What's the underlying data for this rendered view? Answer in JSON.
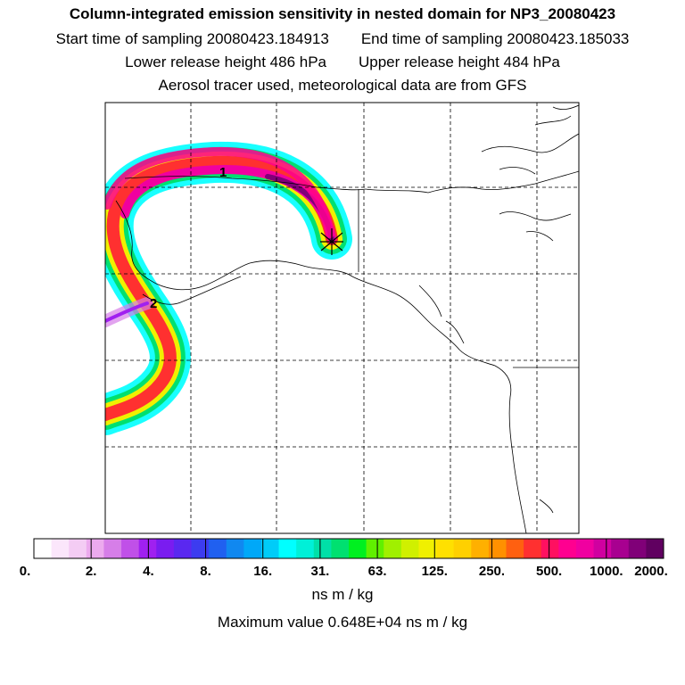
{
  "header": {
    "title": "Column-integrated emission sensitivity in nested domain for NP3_20080423",
    "start_label": "Start time of sampling 20080423.184913",
    "end_label": "End time of sampling 20080423.185033",
    "lower_label": "Lower release height  486 hPa",
    "upper_label": "Upper release height  484 hPa",
    "tracer_label": "Aerosol tracer used, meteorological data are from GFS"
  },
  "map": {
    "markers": [
      {
        "label": "1"
      },
      {
        "label": "2"
      }
    ],
    "release_symbol": "star-icon"
  },
  "colorbar": {
    "ticks": [
      "0.",
      "2.",
      "4.",
      "8.",
      "16.",
      "31.",
      "63.",
      "125.",
      "250.",
      "500.",
      "1000.",
      "2000."
    ],
    "colors": [
      "#ffffff",
      "#fbe6fb",
      "#f4ccf4",
      "#ecaaee",
      "#d67ee8",
      "#c050e8",
      "#a020f0",
      "#7a1cf0",
      "#5a28f0",
      "#3c3cf0",
      "#2060f0",
      "#1088f0",
      "#00a8f8",
      "#00ccf8",
      "#00ffff",
      "#00f0d8",
      "#00e0a8",
      "#00e070",
      "#00f020",
      "#60f000",
      "#a0f000",
      "#d0f000",
      "#f0f000",
      "#ffe000",
      "#ffd000",
      "#ffb000",
      "#ff9000",
      "#ff6010",
      "#ff3030",
      "#ff1060",
      "#ff0090",
      "#f000a0",
      "#d000a0",
      "#a80090",
      "#800078",
      "#600060"
    ],
    "units": "ns m / kg",
    "max_label": "Maximum value  0.648E+04 ns m / kg"
  }
}
